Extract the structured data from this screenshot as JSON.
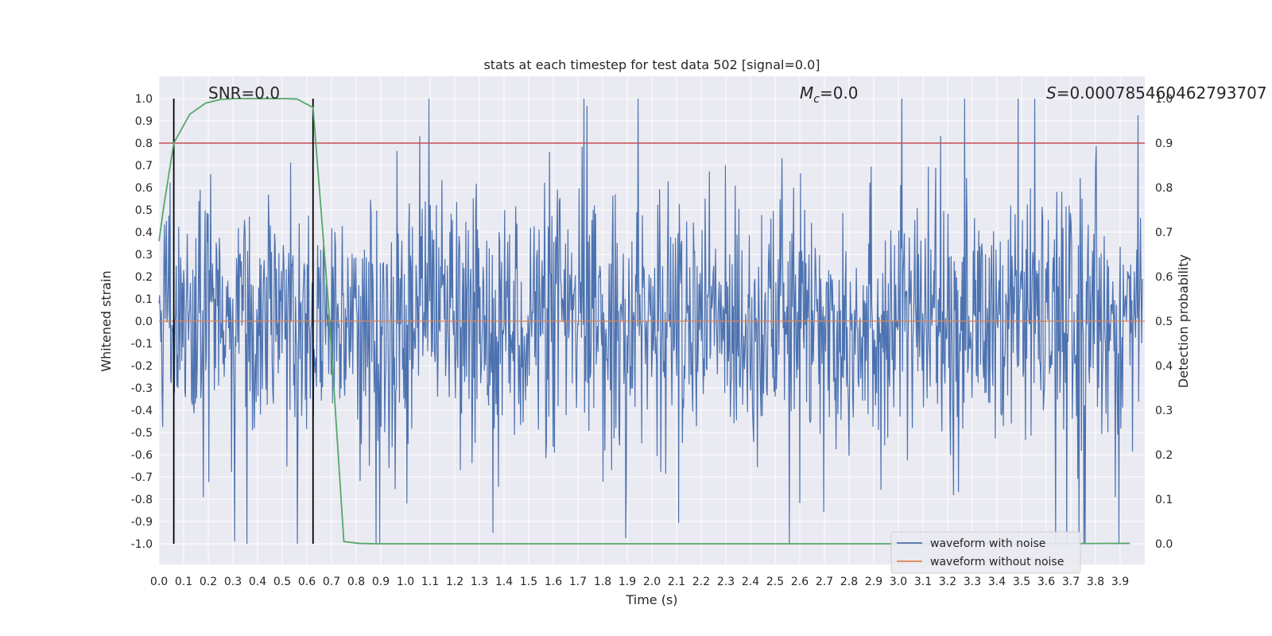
{
  "chart_data": {
    "type": "line",
    "title": "stats at each timestep for test data 502 [signal=0.0]",
    "xlabel": "Time (s)",
    "ylabel_left": "Whitened strain",
    "ylabel_right": "Detection probability",
    "xlim": [
      0.0,
      4.0
    ],
    "ylim_left": [
      -1.1,
      1.1
    ],
    "ylim_right": [
      -0.05,
      1.0
    ],
    "x_ticks": [
      "0.0",
      "0.1",
      "0.2",
      "0.3",
      "0.4",
      "0.5",
      "0.6",
      "0.7",
      "0.8",
      "0.9",
      "1.0",
      "1.1",
      "1.2",
      "1.3",
      "1.4",
      "1.5",
      "1.6",
      "1.7",
      "1.8",
      "1.9",
      "2.0",
      "2.1",
      "2.2",
      "2.3",
      "2.4",
      "2.5",
      "2.6",
      "2.7",
      "2.8",
      "2.9",
      "3.0",
      "3.1",
      "3.2",
      "3.3",
      "3.4",
      "3.5",
      "3.6",
      "3.7",
      "3.8",
      "3.9"
    ],
    "y_ticks_left": [
      "1.0",
      "0.9",
      "0.8",
      "0.7",
      "0.6",
      "0.5",
      "0.4",
      "0.3",
      "0.2",
      "0.1",
      "0.0",
      "-0.1",
      "-0.2",
      "-0.3",
      "-0.4",
      "-0.5",
      "-0.6",
      "-0.7",
      "-0.8",
      "-0.9",
      "-1.0"
    ],
    "y_ticks_right": [
      "1.0",
      "0.9",
      "0.8",
      "0.7",
      "0.6",
      "0.5",
      "0.4",
      "0.3",
      "0.2",
      "0.1",
      "0.0"
    ],
    "grid": true,
    "legend_position": "lower-right",
    "annotations": {
      "snr": "SNR=0.0",
      "mc_symbol": "M",
      "mc_sub": "c",
      "mc_value": "=0.0",
      "s_symbol": "S",
      "s_value": "=0.000785460462793707"
    },
    "threshold_line": {
      "y_right": 0.9,
      "color": "#c44e52"
    },
    "vertical_lines": [
      0.06,
      0.625
    ],
    "series": [
      {
        "name": "waveform with noise",
        "axis": "left",
        "color": "#4c72b0",
        "description_only": false,
        "sample_count": 4096,
        "amplitude_typical": 0.28,
        "amplitude_max": 1.0
      },
      {
        "name": "waveform without noise",
        "axis": "left",
        "color": "#dd8452",
        "values_constant": 0.0
      },
      {
        "name": "",
        "axis": "right",
        "color": "#55a868",
        "x": [
          0.0,
          0.02,
          0.06,
          0.125,
          0.19,
          0.25,
          0.31,
          0.375,
          0.44,
          0.5,
          0.56,
          0.625,
          0.69,
          0.75,
          0.81,
          0.875,
          0.94,
          1.0,
          1.5,
          2.0,
          2.5,
          3.0,
          3.5,
          3.94
        ],
        "y": [
          0.68,
          0.76,
          0.9,
          0.965,
          0.99,
          0.998,
          1.0,
          1.0,
          1.0,
          1.0,
          0.999,
          0.98,
          0.52,
          0.005,
          0.001,
          0.0,
          0.0,
          0.0,
          0.0,
          0.0,
          0.0,
          0.0,
          0.0,
          0.001
        ]
      }
    ]
  }
}
